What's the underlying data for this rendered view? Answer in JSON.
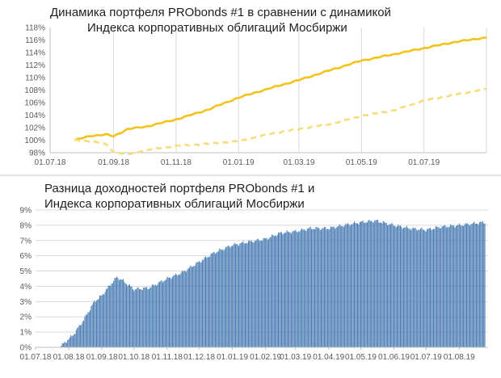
{
  "panel1": {
    "title_line1": "Динамика портфеля PRObonds #1 в сравнении с динамикой",
    "title_line2": "Индекса корпоративных облигаций Мосбиржи"
  },
  "panel2": {
    "title_line1": "Разница доходностей портфеля PRObonds #1 и",
    "title_line2": "Индекса корпоративных облигаций Мосбиржи"
  },
  "colors": {
    "portfolio_line": "#f2c31a",
    "index_line": "#f7dc7a",
    "bars": "#4a7db3",
    "grid": "#d9d9d9",
    "axis": "#bfbfbf"
  },
  "chart_data": [
    {
      "type": "line",
      "title": "Динамика портфеля PRObonds #1 в сравнении с динамикой Индекса корпоративных облигаций Мосбиржи",
      "xlabel": "",
      "ylabel": "",
      "x_ticks": [
        "01.07.18",
        "01.09.18",
        "01.11.18",
        "01.01.19",
        "01.03.19",
        "01.05.19",
        "01.07.19"
      ],
      "y_ticks": [
        "98%",
        "100%",
        "102%",
        "104%",
        "106%",
        "108%",
        "110%",
        "112%",
        "114%",
        "116%",
        "118%"
      ],
      "ylim": [
        98,
        118
      ],
      "xlim": [
        "2018-07-01",
        "2019-08-31"
      ],
      "grid": "vertical",
      "series": [
        {
          "style": "solid",
          "x": [
            "2018-07-25",
            "2018-08-10",
            "2018-08-25",
            "2018-09-01",
            "2018-09-15",
            "2018-10-01",
            "2018-11-01",
            "2018-12-01",
            "2019-01-01",
            "2019-02-01",
            "2019-03-01",
            "2019-04-01",
            "2019-05-01",
            "2019-06-01",
            "2019-07-01",
            "2019-08-01",
            "2019-08-31"
          ],
          "values": [
            100.0,
            100.7,
            100.9,
            100.6,
            101.8,
            102.1,
            103.3,
            104.8,
            106.8,
            108.3,
            109.6,
            111.2,
            112.7,
            113.7,
            114.7,
            115.7,
            116.4
          ]
        },
        {
          "style": "dashed",
          "x": [
            "2018-07-25",
            "2018-08-10",
            "2018-08-25",
            "2018-09-01",
            "2018-09-15",
            "2018-10-01",
            "2018-11-01",
            "2018-12-01",
            "2019-01-01",
            "2019-02-01",
            "2019-03-01",
            "2019-04-01",
            "2019-05-01",
            "2019-06-01",
            "2019-07-01",
            "2019-08-01",
            "2019-08-31"
          ],
          "values": [
            100.0,
            99.8,
            99.3,
            98.1,
            97.7,
            98.4,
            99.1,
            99.4,
            99.8,
            101.0,
            101.8,
            102.6,
            103.9,
            104.7,
            106.3,
            107.3,
            108.2
          ]
        }
      ]
    },
    {
      "type": "bar",
      "title": "Разница доходностей портфеля PRObonds #1 и Индекса корпоративных облигаций Мосбиржи",
      "xlabel": "",
      "ylabel": "",
      "x_ticks": [
        "01.07.18",
        "01.08.18",
        "01.09.18",
        "01.10.18",
        "01.11.18",
        "01.12.18",
        "01.01.19",
        "01.02.19",
        "01.03.19",
        "01.04.19",
        "01.05.19",
        "01.06.19",
        "01.07.19",
        "01.08.19"
      ],
      "y_ticks": [
        "0%",
        "1%",
        "2%",
        "3%",
        "4%",
        "5%",
        "6%",
        "7%",
        "8%",
        "9%"
      ],
      "ylim": [
        0,
        9
      ],
      "xlim": [
        "2018-07-01",
        "2019-08-28"
      ],
      "bar_dates": [
        "2018-07-25",
        "2018-08-05",
        "2018-08-15",
        "2018-08-25",
        "2018-09-01",
        "2018-09-10",
        "2018-09-15",
        "2018-09-20",
        "2018-10-01",
        "2018-10-15",
        "2018-11-01",
        "2018-11-15",
        "2018-12-01",
        "2018-12-15",
        "2019-01-01",
        "2019-01-15",
        "2019-02-01",
        "2019-02-15",
        "2019-03-01",
        "2019-03-15",
        "2019-04-01",
        "2019-04-15",
        "2019-05-01",
        "2019-05-15",
        "2019-06-01",
        "2019-06-15",
        "2019-07-01",
        "2019-07-15",
        "2019-08-01",
        "2019-08-25"
      ],
      "values": [
        0.1,
        0.8,
        1.8,
        3.0,
        3.4,
        4.2,
        4.6,
        4.4,
        3.8,
        3.9,
        4.5,
        4.9,
        5.6,
        6.2,
        6.7,
        6.9,
        7.1,
        7.5,
        7.6,
        7.8,
        7.8,
        8.0,
        8.2,
        8.3,
        8.0,
        7.8,
        7.7,
        7.9,
        8.0,
        8.2
      ]
    }
  ]
}
